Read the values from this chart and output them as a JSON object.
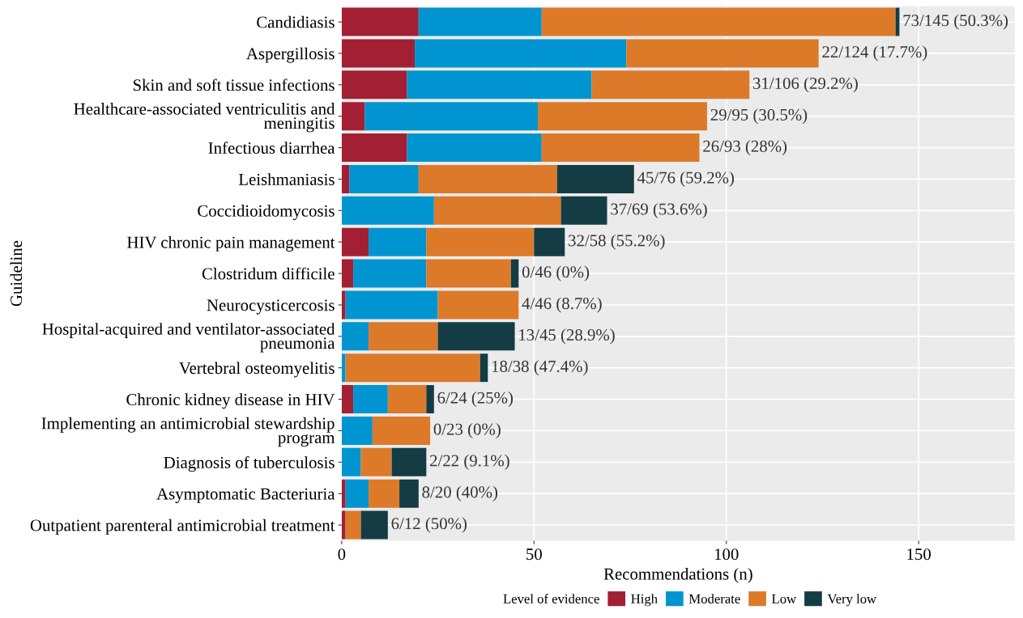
{
  "chart_data": {
    "type": "bar",
    "orientation": "horizontal",
    "stacked": true,
    "xlabel": "Recommendations (n)",
    "ylabel": "Guideline",
    "legend_title": "Level of evidence",
    "legend": "bottom",
    "grid": true,
    "categories": [
      "Candidiasis",
      "Aspergillosis",
      "Skin and soft tissue infections",
      "Healthcare-associated ventriculitis and\nmeningitis",
      "Infectious diarrhea",
      "Leishmaniasis",
      "Coccidioidomycosis",
      "HIV chronic pain management",
      "Clostridum difficile",
      "Neurocysticercosis",
      "Hospital-acquired and ventilator-associated\npneumonia",
      "Vertebral osteomyelitis",
      "Chronic kidney disease in HIV",
      "Implementing an antimicrobial stewardship\nprogram",
      "Diagnosis of tuberculosis",
      "Asymptomatic Bacteriuria",
      "Outpatient parenteral antimicrobial treatment"
    ],
    "series": [
      {
        "name": "High",
        "color": "#a31f34",
        "values": [
          20,
          19,
          17,
          6,
          17,
          2,
          0,
          7,
          3,
          1,
          0,
          0,
          3,
          0,
          0,
          1,
          1
        ]
      },
      {
        "name": "Moderate",
        "color": "#0095d0",
        "values": [
          32,
          55,
          48,
          45,
          35,
          18,
          24,
          15,
          19,
          24,
          7,
          1,
          9,
          8,
          5,
          6,
          0
        ]
      },
      {
        "name": "Low",
        "color": "#dc7a2a",
        "values": [
          92,
          50,
          41,
          44,
          41,
          36,
          33,
          28,
          22,
          21,
          18,
          35,
          10,
          15,
          8,
          8,
          4
        ]
      },
      {
        "name": "Very low",
        "color": "#143c45",
        "values": [
          1,
          0,
          0,
          0,
          0,
          20,
          12,
          8,
          2,
          0,
          20,
          2,
          2,
          0,
          9,
          5,
          7
        ]
      }
    ],
    "totals": [
      "73/145 (50.3%)",
      "22/124 (17.7%)",
      "31/106 (29.2%)",
      "29/95 (30.5%)",
      "26/93 (28%)",
      "45/76 (59.2%)",
      "37/69 (53.6%)",
      "32/58 (55.2%)",
      "0/46 (0%)",
      "4/46 (8.7%)",
      "13/45 (28.9%)",
      "18/38 (47.4%)",
      "6/24 (25%)",
      "0/23 (0%)",
      "2/22 (9.1%)",
      "8/20 (40%)",
      "6/12 (50%)"
    ],
    "xlim": [
      0,
      175
    ],
    "xticks": [
      0,
      50,
      100,
      150
    ]
  }
}
